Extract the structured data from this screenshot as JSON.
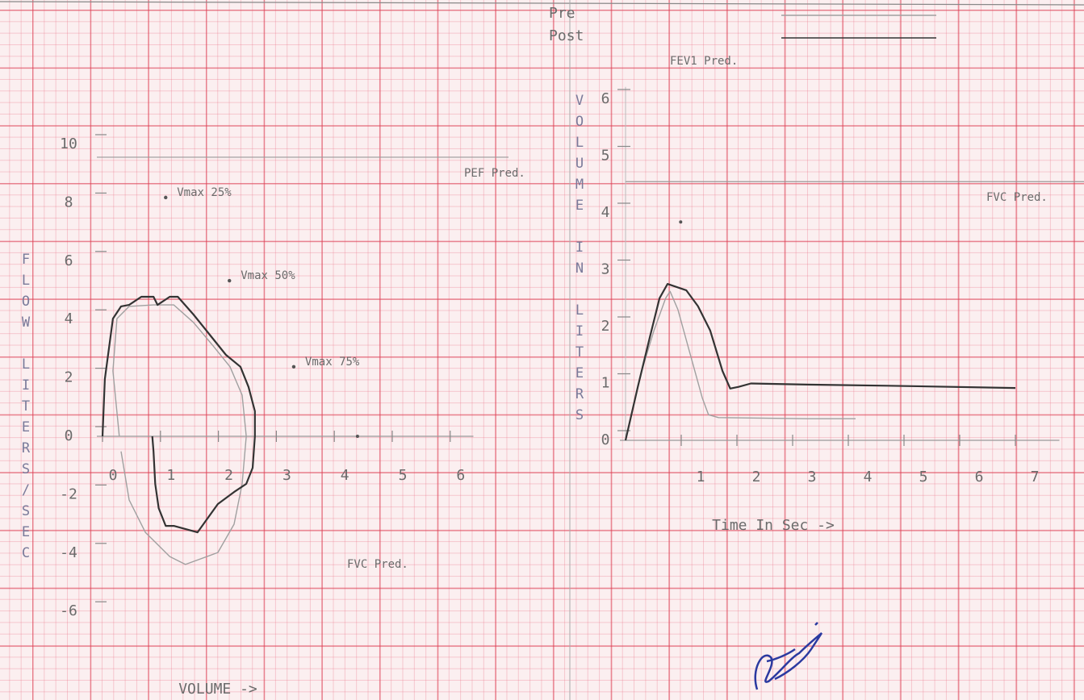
{
  "chart_data": [
    {
      "type": "line",
      "x_label": "VOLUME ->",
      "y_label": "FLOW LITERS/SEC",
      "xlim": [
        0,
        6.4
      ],
      "ylim": [
        -7,
        11
      ],
      "xticks": [
        0,
        1,
        2,
        3,
        4,
        5,
        6
      ],
      "yticks": [
        10,
        8,
        6,
        4,
        2,
        0,
        -2,
        -4,
        -6
      ],
      "series": [
        {
          "name": "Pre",
          "color": "#a0a0a0",
          "x": [
            0.29,
            0.18,
            0.25,
            0.46,
            0.88,
            1.23,
            1.57,
            1.92,
            2.2,
            2.41,
            2.48,
            2.41,
            2.27,
            1.99,
            1.43,
            1.16,
            0.74,
            0.46,
            0.32
          ],
          "values": [
            0,
            2.24,
            4.03,
            4.45,
            4.5,
            4.5,
            3.9,
            3.07,
            2.38,
            1.41,
            0,
            -1.63,
            -3.01,
            -3.98,
            -4.39,
            -4.12,
            -3.29,
            -2.18,
            -0.52
          ]
        },
        {
          "name": "Post",
          "color": "#333333",
          "x": [
            0,
            0.04,
            0.18,
            0.32,
            0.46,
            0.67,
            0.88,
            0.95,
            1.16,
            1.3,
            1.57,
            1.85,
            2.13,
            2.38,
            2.52,
            2.63,
            2.63,
            2.59,
            2.48,
            2.27,
            1.99,
            1.64,
            1.23,
            1.09,
            0.97,
            0.91,
            0.88,
            0.86
          ],
          "values": [
            0,
            1.96,
            4.03,
            4.45,
            4.5,
            4.78,
            4.78,
            4.5,
            4.78,
            4.78,
            4.17,
            3.48,
            2.79,
            2.38,
            1.69,
            0.86,
            0,
            -1.08,
            -1.63,
            -1.91,
            -2.32,
            -3.29,
            -3.07,
            -3.07,
            -2.46,
            -1.63,
            -0.52,
            0
          ]
        }
      ],
      "points": [
        {
          "label": "Vmax 25%",
          "x": 1.09,
          "y": 8.18
        },
        {
          "label": "Vmax 50%",
          "x": 2.19,
          "y": 5.33
        },
        {
          "label": "Vmax 75%",
          "x": 3.3,
          "y": 2.38
        }
      ],
      "pef_pred": {
        "label": "PEF Pred.",
        "value": 9.56
      },
      "fvc_pred": {
        "label": "FVC Pred.",
        "x": 4.4
      }
    },
    {
      "type": "line",
      "x_label": "Time In Sec ->",
      "y_label": "VOLUME IN LITERS",
      "xlim": [
        0,
        7.5
      ],
      "ylim": [
        0,
        6.5
      ],
      "xticks": [
        1,
        2,
        3,
        4,
        5,
        6,
        7
      ],
      "yticks": [
        6,
        5,
        4,
        3,
        2,
        1,
        0
      ],
      "series": [
        {
          "color": "#a0a0a0",
          "x": [
            0,
            0.29,
            0.51,
            0.72,
            0.8,
            0.94,
            1.16,
            1.38,
            1.49,
            1.67,
            3.26,
            4.13
          ],
          "values": [
            0,
            1.22,
            1.93,
            2.5,
            2.62,
            2.3,
            1.52,
            0.74,
            0.45,
            0.4,
            0.38,
            0.38
          ]
        },
        {
          "color": "#333333",
          "x": [
            0,
            0.22,
            0.43,
            0.61,
            0.754,
            1.09,
            1.3,
            1.52,
            1.74,
            1.88,
            2.03,
            2.25,
            3.26,
            4.71,
            7.0
          ],
          "values": [
            0,
            0.94,
            1.79,
            2.5,
            2.75,
            2.64,
            2.36,
            1.93,
            1.22,
            0.91,
            0.94,
            1.0,
            0.98,
            0.96,
            0.92
          ]
        }
      ],
      "fvc_pred": {
        "label": "FVC Pred.",
        "value": 4.55
      },
      "fev1_pred": {
        "label": "FEV1 Pred.",
        "x": 0.99,
        "y": 3.84
      }
    }
  ]
}
